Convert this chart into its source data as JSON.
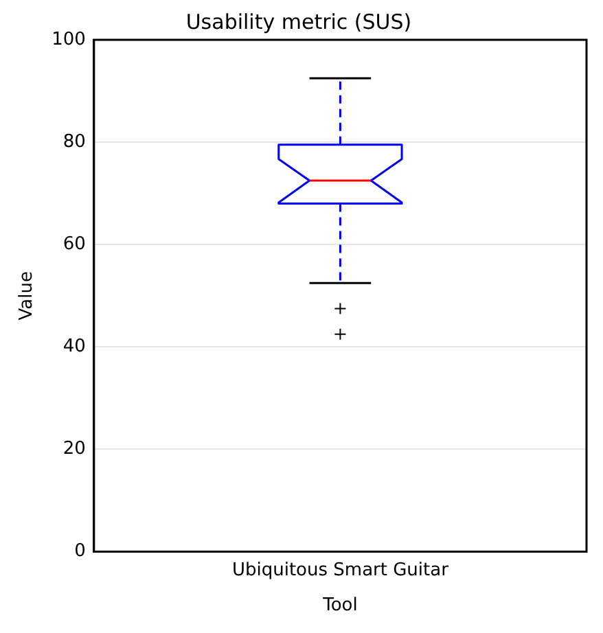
{
  "chart_data": {
    "type": "box",
    "title": "Usability metric (SUS)",
    "xlabel": "Tool",
    "ylabel": "Value",
    "categories": [
      "Ubiquitous Smart Guitar"
    ],
    "series": [
      {
        "color": "#0000ff",
        "boxes": [
          {
            "low": 52.5,
            "q1": 68,
            "median": 72.5,
            "q3": 79.5,
            "high": 92.5,
            "outliers": [
              47.5,
              42.5
            ]
          }
        ]
      }
    ],
    "ylim": [
      0,
      100
    ],
    "yticks": [
      0,
      20,
      40,
      60,
      80,
      100
    ],
    "grid": "y"
  }
}
